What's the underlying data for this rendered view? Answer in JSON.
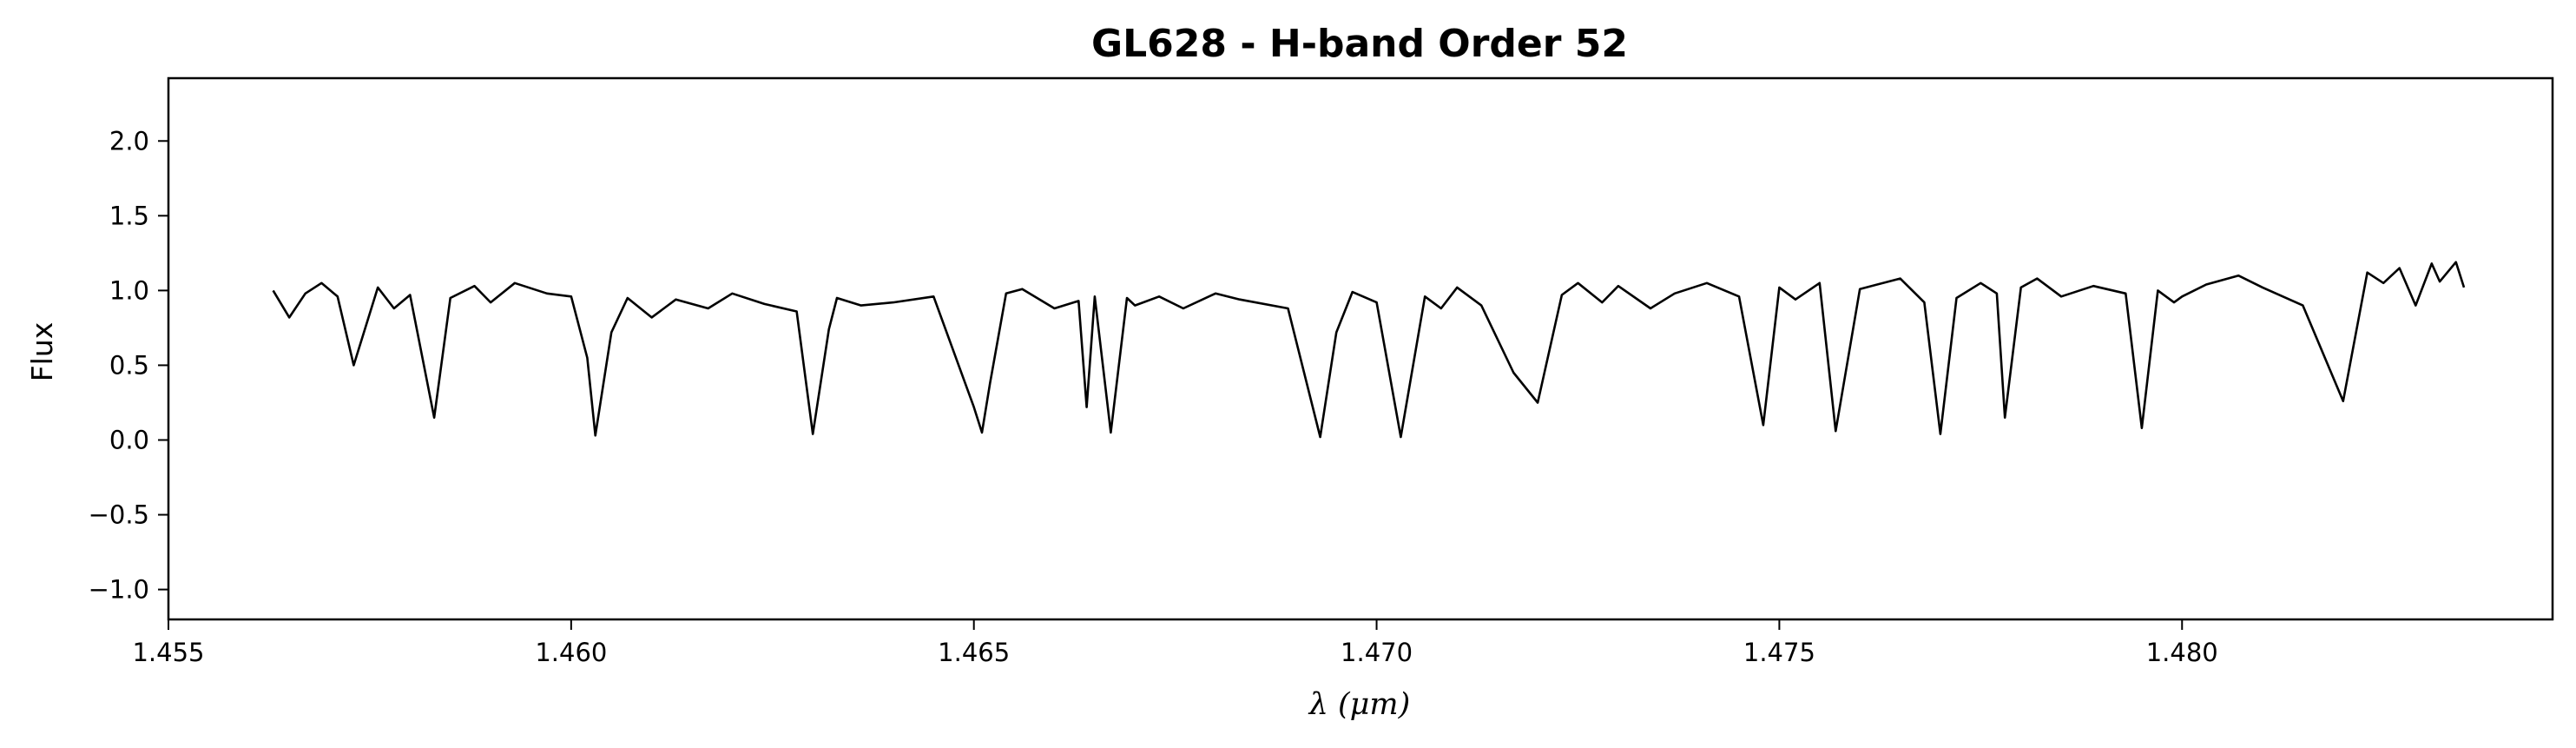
{
  "chart_data": {
    "type": "line",
    "title": "GL628 - H-band Order 52",
    "xlabel": "λ (μm)",
    "ylabel": "Flux",
    "xlim": [
      1.455,
      1.4846
    ],
    "ylim": [
      -1.2,
      2.42
    ],
    "xticks": [
      1.455,
      1.46,
      1.465,
      1.47,
      1.475,
      1.48
    ],
    "xtick_labels": [
      "1.455",
      "1.460",
      "1.465",
      "1.470",
      "1.475",
      "1.480"
    ],
    "yticks": [
      -1.0,
      -0.5,
      0.0,
      0.5,
      1.0,
      1.5,
      2.0
    ],
    "ytick_labels": [
      "−1.0",
      "−0.5",
      "0.0",
      "0.5",
      "1.0",
      "1.5",
      "2.0"
    ],
    "grid": false,
    "legend": "none",
    "line_color": "#000000",
    "series": [
      {
        "x": [
          1.4563,
          1.4565,
          1.4567,
          1.4569,
          1.4571,
          1.4573,
          1.4576,
          1.4578,
          1.458,
          1.4583,
          1.4585,
          1.4588,
          1.459,
          1.4593,
          1.4597,
          1.46,
          1.4602,
          1.4603,
          1.4605,
          1.4607,
          1.461,
          1.4613,
          1.4617,
          1.462,
          1.4624,
          1.4628,
          1.463,
          1.4632,
          1.4633,
          1.4636,
          1.464,
          1.4645,
          1.465,
          1.4651,
          1.4652,
          1.4654,
          1.4656,
          1.466,
          1.4663,
          1.4664,
          1.4665,
          1.4667,
          1.4669,
          1.467,
          1.4673,
          1.4676,
          1.468,
          1.4683,
          1.4689,
          1.4693,
          1.4695,
          1.4697,
          1.47,
          1.4703,
          1.4706,
          1.4708,
          1.471,
          1.4713,
          1.4717,
          1.472,
          1.4723,
          1.4725,
          1.4728,
          1.473,
          1.4734,
          1.4737,
          1.4741,
          1.4745,
          1.4748,
          1.475,
          1.4752,
          1.4755,
          1.4757,
          1.476,
          1.4765,
          1.4768,
          1.477,
          1.4772,
          1.4775,
          1.4777,
          1.4778,
          1.478,
          1.4782,
          1.4785,
          1.4789,
          1.4793,
          1.4795,
          1.4797,
          1.4799,
          1.48,
          1.4803,
          1.4807,
          1.481,
          1.4815,
          1.482,
          1.4823,
          1.4825,
          1.4827,
          1.4829,
          1.4831,
          1.4832,
          1.4834,
          1.4835
        ],
        "y": [
          1.0,
          0.82,
          0.98,
          1.05,
          0.96,
          0.5,
          1.02,
          0.88,
          0.97,
          0.15,
          0.95,
          1.03,
          0.92,
          1.05,
          0.98,
          0.96,
          0.55,
          0.03,
          0.72,
          0.95,
          0.82,
          0.94,
          0.88,
          0.98,
          0.91,
          0.86,
          0.04,
          0.74,
          0.95,
          0.9,
          0.92,
          0.96,
          0.22,
          0.05,
          0.38,
          0.98,
          1.01,
          0.88,
          0.93,
          0.22,
          0.96,
          0.05,
          0.95,
          0.9,
          0.96,
          0.88,
          0.98,
          0.94,
          0.88,
          0.02,
          0.72,
          0.99,
          0.92,
          0.02,
          0.96,
          0.88,
          1.02,
          0.9,
          0.45,
          0.25,
          0.97,
          1.05,
          0.92,
          1.03,
          0.88,
          0.98,
          1.05,
          0.96,
          0.1,
          1.02,
          0.94,
          1.05,
          0.06,
          1.01,
          1.08,
          0.92,
          0.04,
          0.95,
          1.05,
          0.98,
          0.15,
          1.02,
          1.08,
          0.96,
          1.03,
          0.98,
          0.08,
          1.0,
          0.92,
          0.96,
          1.04,
          1.1,
          1.02,
          0.9,
          0.26,
          1.12,
          1.05,
          1.15,
          0.9,
          1.18,
          1.06,
          1.19,
          1.02
        ]
      }
    ]
  }
}
